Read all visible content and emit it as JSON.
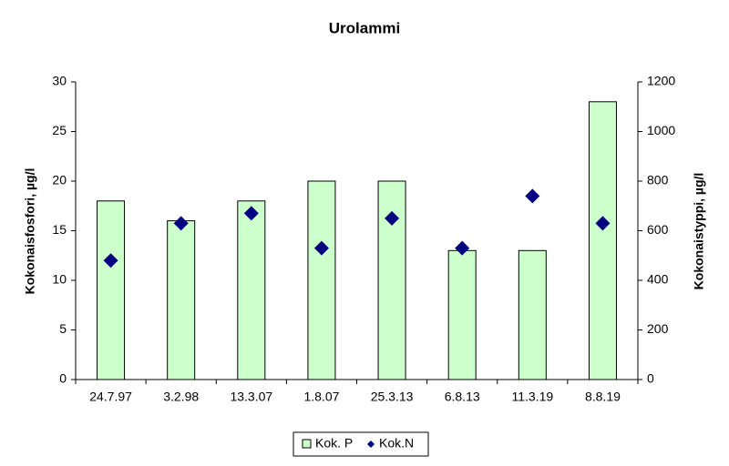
{
  "chart_data": {
    "type": "bar",
    "title": "Urolammi",
    "y_label": "Kokonaisfosfori, µg/l",
    "y2_label": "Kokonaistyppi, µg/l",
    "categories": [
      "24.7.97",
      "3.2.98",
      "13.3.07",
      "1.8.07",
      "25.3.13",
      "6.8.13",
      "11.3.19",
      "8.8.19"
    ],
    "series": [
      {
        "name": "Kok. P",
        "type": "bar",
        "color": "#ccffcc",
        "values": [
          18,
          16,
          18,
          20,
          20,
          13,
          13,
          28
        ]
      },
      {
        "name": "Kok.N",
        "type": "scatter",
        "axis": "y2",
        "color": "#000080",
        "values": [
          480,
          630,
          670,
          530,
          650,
          530,
          740,
          630
        ]
      }
    ],
    "ylim": [
      0,
      30
    ],
    "yticks": [
      0,
      5,
      10,
      15,
      20,
      25,
      30
    ],
    "y2lim": [
      0,
      1200
    ],
    "y2ticks": [
      0,
      200,
      400,
      600,
      800,
      1000,
      1200
    ],
    "grid": false,
    "legend": "bottom"
  }
}
